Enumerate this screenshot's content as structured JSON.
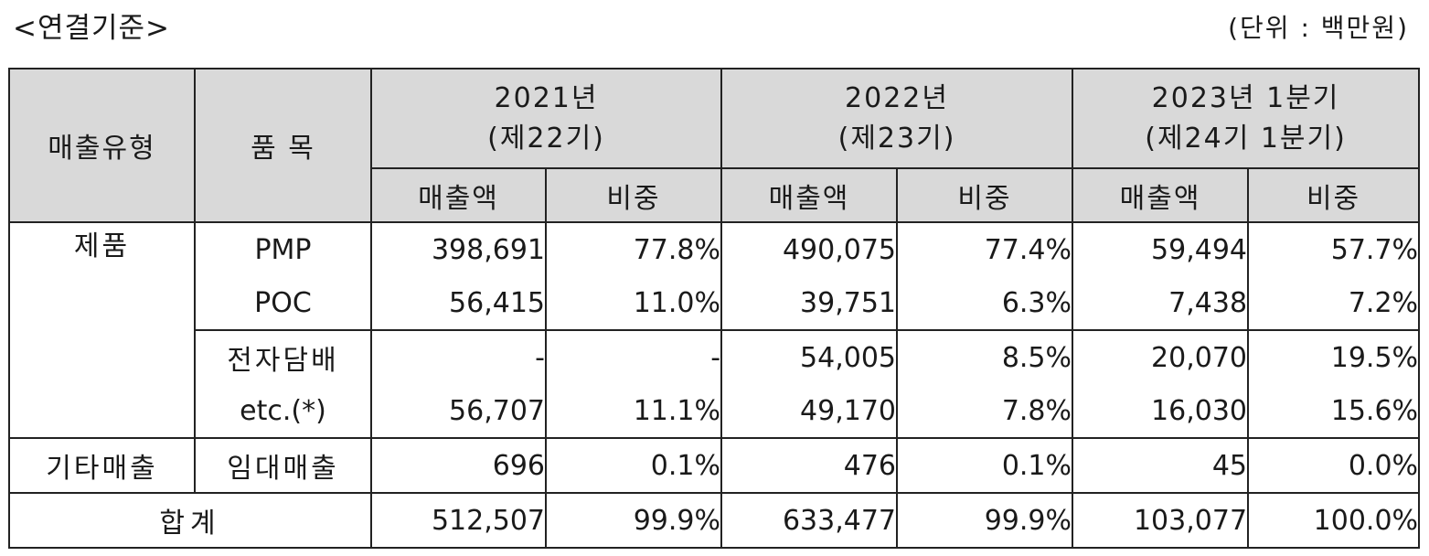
{
  "caption": {
    "title": "<연결기준>",
    "unit": "(단위 : 백만원)"
  },
  "header": {
    "type_label": "매출유형",
    "item_label": "품 목",
    "years": [
      {
        "line1": "2021년",
        "line2": "(제22기)"
      },
      {
        "line1": "2022년",
        "line2": "(제23기)"
      },
      {
        "line1": "2023년 1분기",
        "line2": "(제24기 1분기)"
      }
    ],
    "amount_label": "매출액",
    "ratio_label": "비중"
  },
  "groups": {
    "products": "제품",
    "other": "기타매출",
    "total": "합계"
  },
  "rows": [
    {
      "item": "PMP",
      "values": [
        "398,691",
        "77.8%",
        "490,075",
        "77.4%",
        "59,494",
        "57.7%"
      ]
    },
    {
      "item": "POC",
      "values": [
        "56,415",
        "11.0%",
        "39,751",
        "6.3%",
        "7,438",
        "7.2%"
      ]
    },
    {
      "item": "전자담배",
      "values": [
        "-",
        "-",
        "54,005",
        "8.5%",
        "20,070",
        "19.5%"
      ]
    },
    {
      "item": "etc.(*)",
      "values": [
        "56,707",
        "11.1%",
        "49,170",
        "7.8%",
        "16,030",
        "15.6%"
      ]
    },
    {
      "item": "임대매출",
      "values": [
        "696",
        "0.1%",
        "476",
        "0.1%",
        "45",
        "0.0%"
      ]
    }
  ],
  "total": {
    "values": [
      "512,507",
      "99.9%",
      "633,477",
      "99.9%",
      "103,077",
      "100.0%"
    ]
  }
}
